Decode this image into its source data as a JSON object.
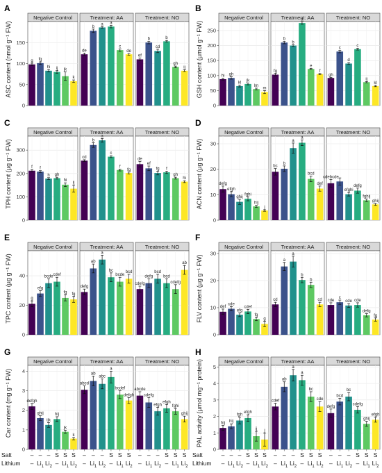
{
  "figure": {
    "facet_titles": [
      "Negative Control",
      "Treatment: AA",
      "Treatment: NO"
    ],
    "bar_colors": [
      "#440154",
      "#3b528b",
      "#21918c",
      "#27ad81",
      "#5ec962",
      "#fde725"
    ],
    "x_factor_rows": [
      {
        "label": "Salt",
        "levels": [
          "–",
          "–",
          "–",
          "S",
          "S",
          "S"
        ]
      },
      {
        "label": "Lithium",
        "levels": [
          "–",
          "Li1",
          "Li2",
          "–",
          "Li1",
          "Li2"
        ]
      }
    ]
  },
  "chart_data": [
    {
      "type": "bar",
      "panel_label": "A",
      "ylabel": "ASC content (nmol g⁻¹ FW)",
      "ylim": [
        0,
        200
      ],
      "yticks": [
        0,
        50,
        100,
        150
      ],
      "groups": [
        {
          "title": "Negative Control",
          "values": [
            98,
            101,
            83,
            80,
            70,
            58
          ],
          "errors": [
            3,
            3,
            3,
            3,
            10,
            3
          ],
          "letters": [
            "g",
            "fg",
            "hi",
            "ij",
            "jk",
            "k"
          ]
        },
        {
          "title": "Treatment: AA",
          "values": [
            122,
            178,
            186,
            188,
            132,
            122
          ],
          "errors": [
            3,
            4,
            2,
            3,
            3,
            2
          ],
          "letters": [
            "de",
            "b",
            "a",
            "a",
            "c",
            "de"
          ]
        },
        {
          "title": "Treatment: NO",
          "values": [
            110,
            150,
            130,
            153,
            92,
            83
          ],
          "errors": [
            3,
            3,
            4,
            2,
            2,
            2
          ],
          "letters": [
            "ef",
            "b",
            "cd",
            "b",
            "gh",
            "ij"
          ]
        }
      ]
    },
    {
      "type": "bar",
      "panel_label": "B",
      "ylabel": "GSH content (µmol g⁻¹ FW)",
      "ylim": [
        0,
        280
      ],
      "yticks": [
        0,
        50,
        100,
        150,
        200,
        250
      ],
      "groups": [
        {
          "title": "Negative Control",
          "values": [
            88,
            92,
            65,
            72,
            55,
            45
          ],
          "errors": [
            3,
            4,
            3,
            3,
            3,
            5
          ],
          "letters": [
            "hi",
            "gh",
            "kl",
            "jk",
            "lm",
            "m"
          ]
        },
        {
          "title": "Treatment: AA",
          "values": [
            103,
            210,
            200,
            275,
            122,
            105
          ],
          "errors": [
            4,
            4,
            3,
            4,
            2,
            2
          ],
          "letters": [
            "fg",
            "b",
            "b",
            "a",
            "e",
            "f"
          ]
        },
        {
          "title": "Treatment: NO",
          "values": [
            92,
            180,
            140,
            188,
            78,
            65
          ],
          "errors": [
            2,
            4,
            3,
            3,
            2,
            2
          ],
          "letters": [
            "gh",
            "c",
            "d",
            "c",
            "ij",
            "kl"
          ]
        }
      ]
    },
    {
      "type": "bar",
      "panel_label": "C",
      "ylabel": "TPH content (µg g⁻¹ FW)",
      "ylim": [
        0,
        360
      ],
      "yticks": [
        0,
        100,
        200,
        300
      ],
      "groups": [
        {
          "title": "Negative Control",
          "values": [
            212,
            208,
            178,
            180,
            152,
            135
          ],
          "errors": [
            5,
            4,
            4,
            4,
            8,
            15
          ],
          "letters": [
            "f",
            "f",
            "h",
            "gh",
            "hi",
            "ij"
          ]
        },
        {
          "title": "Treatment: AA",
          "values": [
            255,
            322,
            342,
            272,
            215,
            202
          ],
          "errors": [
            4,
            10,
            8,
            4,
            4,
            4
          ],
          "letters": [
            "cd",
            "b",
            "a",
            "c",
            "f",
            "fg"
          ]
        },
        {
          "title": "Treatment: NO",
          "values": [
            240,
            222,
            202,
            205,
            180,
            165
          ],
          "errors": [
            12,
            10,
            8,
            5,
            4,
            4
          ],
          "letters": [
            "de",
            "ef",
            "fg",
            "f",
            "gh",
            "hi"
          ]
        }
      ]
    },
    {
      "type": "bar",
      "panel_label": "D",
      "ylabel": "ACN content (µg g⁻¹ FW)",
      "ylim": [
        0,
        33
      ],
      "yticks": [
        0,
        10,
        20,
        30
      ],
      "groups": [
        {
          "title": "Negative Control",
          "values": [
            12.2,
            10.2,
            7.2,
            8.4,
            5.4,
            3.8
          ],
          "errors": [
            1.2,
            1.0,
            1.0,
            0.8,
            0.4,
            0.3
          ],
          "letters": [
            "defg",
            "efgh",
            "ghij",
            "fghi",
            "hij",
            "j"
          ]
        },
        {
          "title": "Treatment: AA",
          "values": [
            19.0,
            20.2,
            28.3,
            30.4,
            16.2,
            12.4
          ],
          "errors": [
            1.3,
            1.1,
            2.0,
            1.1,
            1.1,
            1.0
          ],
          "letters": [
            "bc",
            "b",
            "a",
            "a",
            "bcd",
            "def"
          ]
        },
        {
          "title": "Treatment: NO",
          "values": [
            14.5,
            15.2,
            10.2,
            11.6,
            7.8,
            6.2
          ],
          "errors": [
            1.5,
            1.4,
            0.7,
            1.0,
            0.5,
            0.4
          ],
          "letters": [
            "cdebcde",
            "",
            "efghi",
            "defg",
            "fghij",
            "ghij"
          ]
        }
      ]
    },
    {
      "type": "bar",
      "panel_label": "E",
      "ylabel": "TPC content (µg g⁻¹ FW)",
      "ylim": [
        0,
        57
      ],
      "yticks": [
        0,
        20,
        40
      ],
      "groups": [
        {
          "title": "Negative Control",
          "values": [
            21,
            28,
            35,
            36,
            25,
            24
          ],
          "errors": [
            2,
            2,
            3,
            3,
            2,
            2
          ],
          "letters": [
            "g",
            "efg",
            "bcde",
            "cdef",
            "fg",
            "fg"
          ]
        },
        {
          "title": "Treatment: AA",
          "values": [
            29,
            45,
            51,
            39,
            36,
            38
          ],
          "errors": [
            2,
            3,
            3,
            3,
            3,
            3
          ],
          "letters": [
            "defg",
            "ab",
            "a",
            "bc",
            "bcde",
            "bcd"
          ]
        },
        {
          "title": "Treatment: NO",
          "values": [
            31,
            35,
            38,
            35,
            31,
            44
          ],
          "errors": [
            2,
            3,
            3,
            3,
            3,
            3
          ],
          "letters": [
            "cdefg",
            "defg",
            "bcd",
            "bcd",
            "cdefg",
            "ab"
          ]
        }
      ]
    },
    {
      "type": "bar",
      "panel_label": "F",
      "ylabel": "FLV content (µg g⁻¹ FW)",
      "ylim": [
        0,
        31
      ],
      "yticks": [
        0,
        10,
        20,
        30
      ],
      "groups": [
        {
          "title": "Negative Control",
          "values": [
            8.5,
            9.6,
            7.4,
            8.6,
            5.8,
            4.0
          ],
          "errors": [
            1.0,
            0.8,
            0.7,
            0.8,
            0.6,
            1.0
          ],
          "letters": [
            "def",
            "cde",
            "efg",
            "cdef",
            "fg",
            "g"
          ]
        },
        {
          "title": "Treatment: AA",
          "values": [
            11.2,
            25.2,
            27.0,
            20.2,
            18.4,
            11.2
          ],
          "errors": [
            0.8,
            1.5,
            2.0,
            1.0,
            1.0,
            0.8
          ],
          "letters": [
            "cd",
            "a",
            "a",
            "b",
            "b",
            "cd"
          ]
        },
        {
          "title": "Treatment: NO",
          "values": [
            11.0,
            12.0,
            10.8,
            11.0,
            7.2,
            5.6
          ],
          "errors": [
            0.8,
            0.8,
            0.7,
            0.8,
            0.6,
            0.6
          ],
          "letters": [
            "cde",
            "c",
            "cde",
            "cde",
            "defg",
            "fg"
          ]
        }
      ]
    },
    {
      "type": "bar",
      "panel_label": "G",
      "ylabel": "Car content (mg g⁻¹ FW)",
      "ylim": [
        0,
        4.3
      ],
      "yticks": [
        0,
        1,
        2,
        3,
        4
      ],
      "groups": [
        {
          "title": "Negative Control",
          "values": [
            2.2,
            1.6,
            1.25,
            1.55,
            0.9,
            0.55
          ],
          "errors": [
            0.15,
            0.12,
            0.12,
            0.12,
            0.08,
            0.06
          ],
          "letters": [
            "defgh",
            "ghij",
            "ijk",
            "hij",
            "jk",
            "k"
          ]
        },
        {
          "title": "Treatment: AA",
          "values": [
            3.05,
            3.5,
            3.35,
            3.7,
            2.8,
            2.5
          ],
          "errors": [
            0.2,
            0.25,
            0.25,
            0.3,
            0.2,
            0.15
          ],
          "letters": [
            "abcd",
            "ab",
            "abc",
            "a",
            "bcdef",
            "defgh"
          ]
        },
        {
          "title": "Treatment: NO",
          "values": [
            2.75,
            2.4,
            1.95,
            2.1,
            1.95,
            1.55
          ],
          "errors": [
            0.2,
            0.25,
            0.2,
            0.2,
            0.15,
            0.15
          ],
          "letters": [
            "abcde",
            "cdefg",
            "efgh",
            "efgh",
            "fghi",
            "ghij"
          ]
        }
      ]
    },
    {
      "type": "bar",
      "panel_label": "H",
      "ylabel": "PAL activity (µmol mg⁻¹ protein)",
      "ylim": [
        0,
        5.1
      ],
      "yticks": [
        0,
        1,
        2,
        3,
        4,
        5
      ],
      "groups": [
        {
          "title": "Negative Control",
          "values": [
            1.3,
            1.4,
            1.75,
            1.9,
            0.8,
            0.6
          ],
          "errors": [
            0.15,
            0.15,
            0.2,
            0.2,
            0.3,
            0.4
          ],
          "letters": [
            "hij",
            "hij",
            "fgh",
            "efgh",
            "ij",
            "j"
          ]
        },
        {
          "title": "Treatment: AA",
          "values": [
            2.6,
            3.8,
            4.5,
            4.2,
            3.2,
            2.6
          ],
          "errors": [
            0.2,
            0.3,
            0.35,
            0.3,
            0.3,
            0.3
          ],
          "letters": [
            "cdef",
            "ab",
            "a",
            "a",
            "bc",
            "cde"
          ]
        },
        {
          "title": "Treatment: NO",
          "values": [
            2.2,
            2.9,
            3.2,
            2.4,
            1.55,
            1.8
          ],
          "errors": [
            0.25,
            0.2,
            0.25,
            0.2,
            0.15,
            0.15
          ],
          "letters": [
            "defg",
            "bcd",
            "bc",
            "cdefg",
            "ghij",
            "efgh"
          ]
        }
      ]
    }
  ]
}
